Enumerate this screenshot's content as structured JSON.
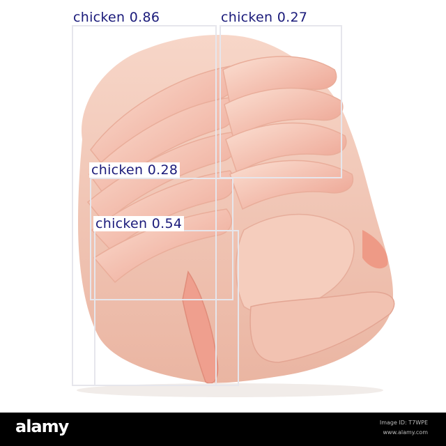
{
  "detections": [
    {
      "label": "chicken 0.86"
    },
    {
      "label": "chicken 0.27"
    },
    {
      "label": "chicken 0.28"
    },
    {
      "label": "chicken 0.54"
    }
  ],
  "footer": {
    "brand": "alamy",
    "image_id": "Image ID: T7WPE",
    "site": "www.alamy.com"
  },
  "colors": {
    "box_stroke": "#e6e6ec",
    "label_text": "#1a1a7a",
    "meat_base": "#f3c7b6",
    "meat_shadow": "#e0a08e",
    "footer_bg": "#000000"
  }
}
